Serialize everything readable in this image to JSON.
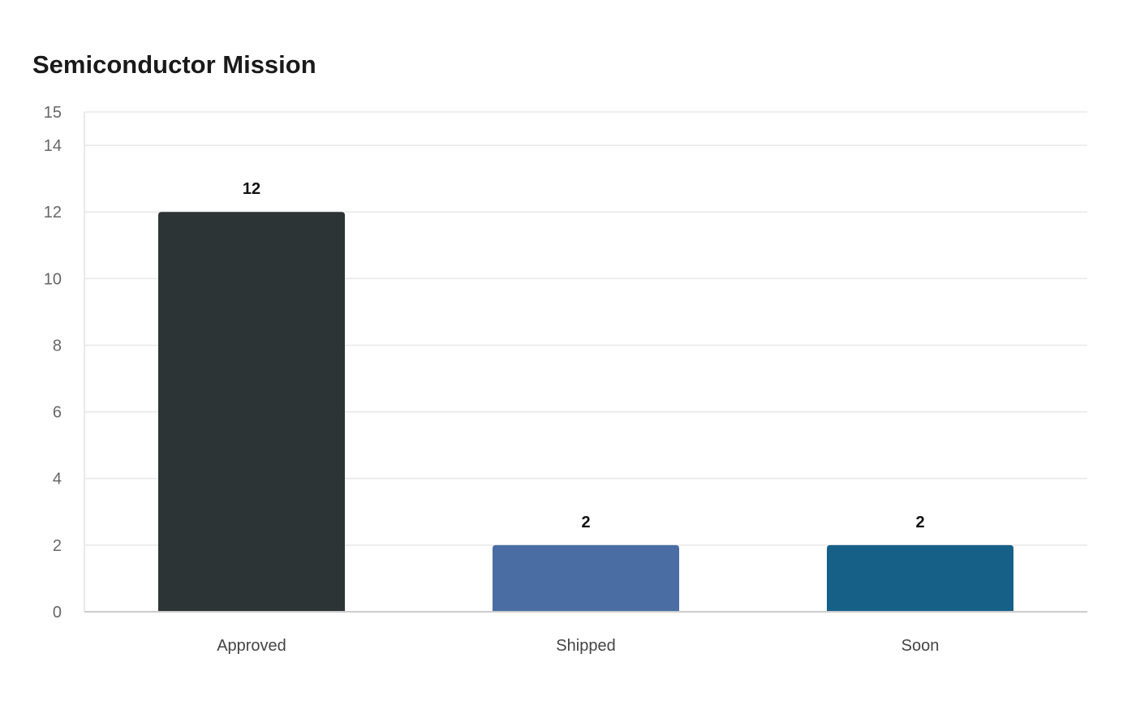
{
  "chart_data": {
    "type": "bar",
    "title": "Semiconductor Mission",
    "categories": [
      "Approved",
      "Shipped",
      "Soon"
    ],
    "values": [
      12,
      2,
      2
    ],
    "colors": [
      "#2d3436",
      "#4a6ea4",
      "#166088"
    ],
    "ylim": [
      0,
      15
    ],
    "yticks": [
      0,
      2,
      4,
      6,
      8,
      10,
      12,
      14,
      15
    ],
    "data_labels": true,
    "grid": true,
    "legend": "none"
  }
}
